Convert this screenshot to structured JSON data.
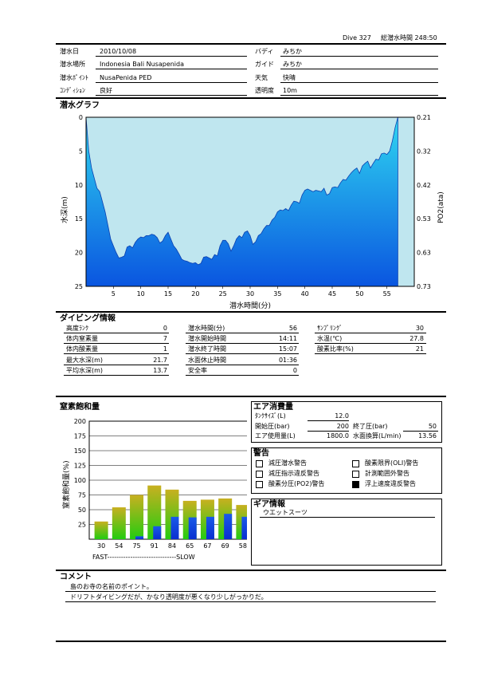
{
  "header": {
    "dive_no": "Dive 327",
    "total_time": "総潜水時間 248:50"
  },
  "info": {
    "left": [
      {
        "label": "潜水日",
        "value": "2010/10/08"
      },
      {
        "label": "潜水場所",
        "value": "Indonesia Bali  Nusapenida"
      },
      {
        "label": "潜水ﾎﾟｲﾝﾄ",
        "value": "NusaPenida  PED"
      },
      {
        "label": "ｺﾝﾃﾞｨｼｮﾝ",
        "value": "良好"
      }
    ],
    "right": [
      {
        "label": "バディ",
        "value": "みちか"
      },
      {
        "label": "ガイド",
        "value": "みちか"
      },
      {
        "label": "天気",
        "value": "快晴"
      },
      {
        "label": "透明度",
        "value": "10m"
      }
    ]
  },
  "graph": {
    "title": "潜水グラフ",
    "ylabel": "水深(m)",
    "y2label": "PO2(ata)",
    "xlabel": "潜水時間(分)",
    "depth_ticks": [
      "0",
      "5",
      "10",
      "15",
      "20",
      "25"
    ],
    "po2_ticks": [
      "0.21",
      "0.32",
      "0.42",
      "0.53",
      "0.63",
      "0.73"
    ],
    "x_ticks": [
      "5",
      "10",
      "15",
      "20",
      "25",
      "30",
      "35",
      "40",
      "45",
      "50",
      "55"
    ]
  },
  "chart_data": [
    {
      "type": "area",
      "title": "潜水グラフ",
      "xlabel": "潜水時間(分)",
      "ylabel": "水深(m)",
      "y2label": "PO2(ata)",
      "xlim": [
        0,
        60
      ],
      "ylim": [
        0,
        25
      ],
      "y_inverted": true,
      "y2lim": [
        0.21,
        0.73
      ],
      "series": [
        {
          "name": "水深",
          "x": [
            0,
            0.5,
            1,
            1.5,
            2,
            2.5,
            3,
            3.5,
            4,
            4.5,
            5,
            5.5,
            6,
            6.5,
            7,
            7.5,
            8,
            8.5,
            9,
            9.5,
            10,
            10.5,
            11,
            11.5,
            12,
            12.5,
            13,
            13.5,
            14,
            14.5,
            15,
            15.5,
            16,
            16.5,
            17,
            17.5,
            18,
            18.5,
            19,
            19.5,
            20,
            20.5,
            21,
            21.5,
            22,
            22.5,
            23,
            23.5,
            24,
            24.5,
            25,
            25.5,
            26,
            26.5,
            27,
            27.5,
            28,
            28.5,
            29,
            29.5,
            30,
            30.5,
            31,
            31.5,
            32,
            32.5,
            33,
            33.5,
            34,
            34.5,
            35,
            35.5,
            36,
            36.5,
            37,
            37.5,
            38,
            38.5,
            39,
            39.5,
            40,
            40.5,
            41,
            41.5,
            42,
            42.5,
            43,
            43.5,
            44,
            44.5,
            45,
            45.5,
            46,
            46.5,
            47,
            47.5,
            48,
            48.5,
            49,
            49.5,
            50,
            50.5,
            51,
            51.5,
            52,
            52.5,
            53,
            53.5,
            54,
            54.5,
            55,
            55.5,
            56,
            56.5,
            57
          ],
          "values": [
            0,
            5,
            7.5,
            9,
            10.5,
            11,
            12.5,
            14,
            16,
            18,
            19,
            20,
            20.8,
            20.7,
            20.5,
            19.2,
            19,
            19.3,
            18.5,
            18,
            17.7,
            17.8,
            17.5,
            17.5,
            17.3,
            17.4,
            17.8,
            18.6,
            18.3,
            17.5,
            17,
            18,
            19,
            19.5,
            20.2,
            21,
            21.2,
            21.3,
            21.5,
            21.6,
            21.5,
            21.8,
            21.6,
            20.7,
            20.6,
            20.8,
            21,
            20.3,
            20.5,
            19,
            18.2,
            18.2,
            18.7,
            19.8,
            19,
            18,
            17.5,
            17.8,
            17,
            16.8,
            17.5,
            18.8,
            18.4,
            17.5,
            17.2,
            16.5,
            16,
            16,
            15.2,
            14.8,
            14,
            13.7,
            13.8,
            13.5,
            13.8,
            13,
            12.4,
            12.5,
            12.7,
            11.5,
            10.8,
            10.6,
            10.8,
            11,
            10.8,
            10.9,
            11,
            10.5,
            11.5,
            11.3,
            10.4,
            10.3,
            10.4,
            9.7,
            9.2,
            9.3,
            8.7,
            8.2,
            7.8,
            7.5,
            8.3,
            7.2,
            6.8,
            6.5,
            7.5,
            6.8,
            6.2,
            6.3,
            5.4,
            5.3,
            5.5,
            5,
            3.5,
            1.5,
            0
          ]
        }
      ]
    },
    {
      "type": "bar",
      "title": "窒素飽和量",
      "xlabel": "",
      "ylabel": "窒素飽和量(%)",
      "ylim": [
        0,
        200
      ],
      "yticks": [
        25,
        50,
        75,
        100,
        125,
        150,
        175,
        200
      ],
      "categories": [
        "30",
        "54",
        "75",
        "91",
        "84",
        "65",
        "67",
        "69",
        "58"
      ],
      "series": [
        {
          "name": "total",
          "values": [
            30,
            54,
            75,
            91,
            84,
            65,
            67,
            69,
            58
          ]
        },
        {
          "name": "current",
          "values": [
            0,
            0,
            5,
            22,
            38,
            37,
            38,
            43,
            38
          ]
        }
      ],
      "footer": "FAST------------------------------SLOW"
    }
  ],
  "diving_info": {
    "title": "ダイビング情報",
    "col1": [
      {
        "label": "高度ﾗﾝｸ",
        "value": "0"
      },
      {
        "label": "体内窒素量",
        "value": "7"
      },
      {
        "label": "体内酸素量",
        "value": "1"
      },
      {
        "label": "最大水深(m)",
        "value": "21.7"
      },
      {
        "label": "平均水深(m)",
        "value": "13.7"
      }
    ],
    "col2": [
      {
        "label": "潜水時間(分)",
        "value": "56"
      },
      {
        "label": "潜水開始時間",
        "value": "14:11"
      },
      {
        "label": "潜水終了時間",
        "value": "15:07"
      },
      {
        "label": "水面休止時間",
        "value": "01:36"
      },
      {
        "label": "安全率",
        "value": "0"
      }
    ],
    "col3": [
      {
        "label": "ｻﾝﾌﾟﾘﾝｸﾞ",
        "value": "30"
      },
      {
        "label": "水温(℃)",
        "value": "27.8"
      },
      {
        "label": "酸素比率(%)",
        "value": "21"
      }
    ]
  },
  "nitrogen": {
    "title": "窒素飽和量",
    "ylabel": "窒素飽和量(%)",
    "footer": "FAST------------------------------SLOW"
  },
  "air": {
    "title": "エア消費量",
    "tank_label": "ﾀﾝｸｻｲｽﾞ(L)",
    "tank_value": "12.0",
    "start_label": "開始圧(bar)",
    "start_value": "200",
    "end_label": "終了圧(bar)",
    "end_value": "50",
    "used_label": "エア使用量(L)",
    "used_value": "1800.0",
    "surface_label": "水面換算(L/min)",
    "surface_value": "13.56"
  },
  "warning": {
    "title": "警告",
    "items": [
      {
        "label": "減圧潜水警告",
        "checked": false
      },
      {
        "label": "酸素限界(OLI)警告",
        "checked": false
      },
      {
        "label": "減圧指示違反警告",
        "checked": false
      },
      {
        "label": "計測範囲外警告",
        "checked": false
      },
      {
        "label": "酸素分圧(PO2)警告",
        "checked": false
      },
      {
        "label": "浮上速度違反警告",
        "checked": true
      }
    ]
  },
  "gear": {
    "title": "ギア情報",
    "value": "ウエットスーツ"
  },
  "comment": {
    "title": "コメント",
    "lines": [
      "島のお寺の名前のポイント。",
      "ドリフトダイビングだが、かなり透明度が悪くなり少しがっかりだ。"
    ]
  }
}
